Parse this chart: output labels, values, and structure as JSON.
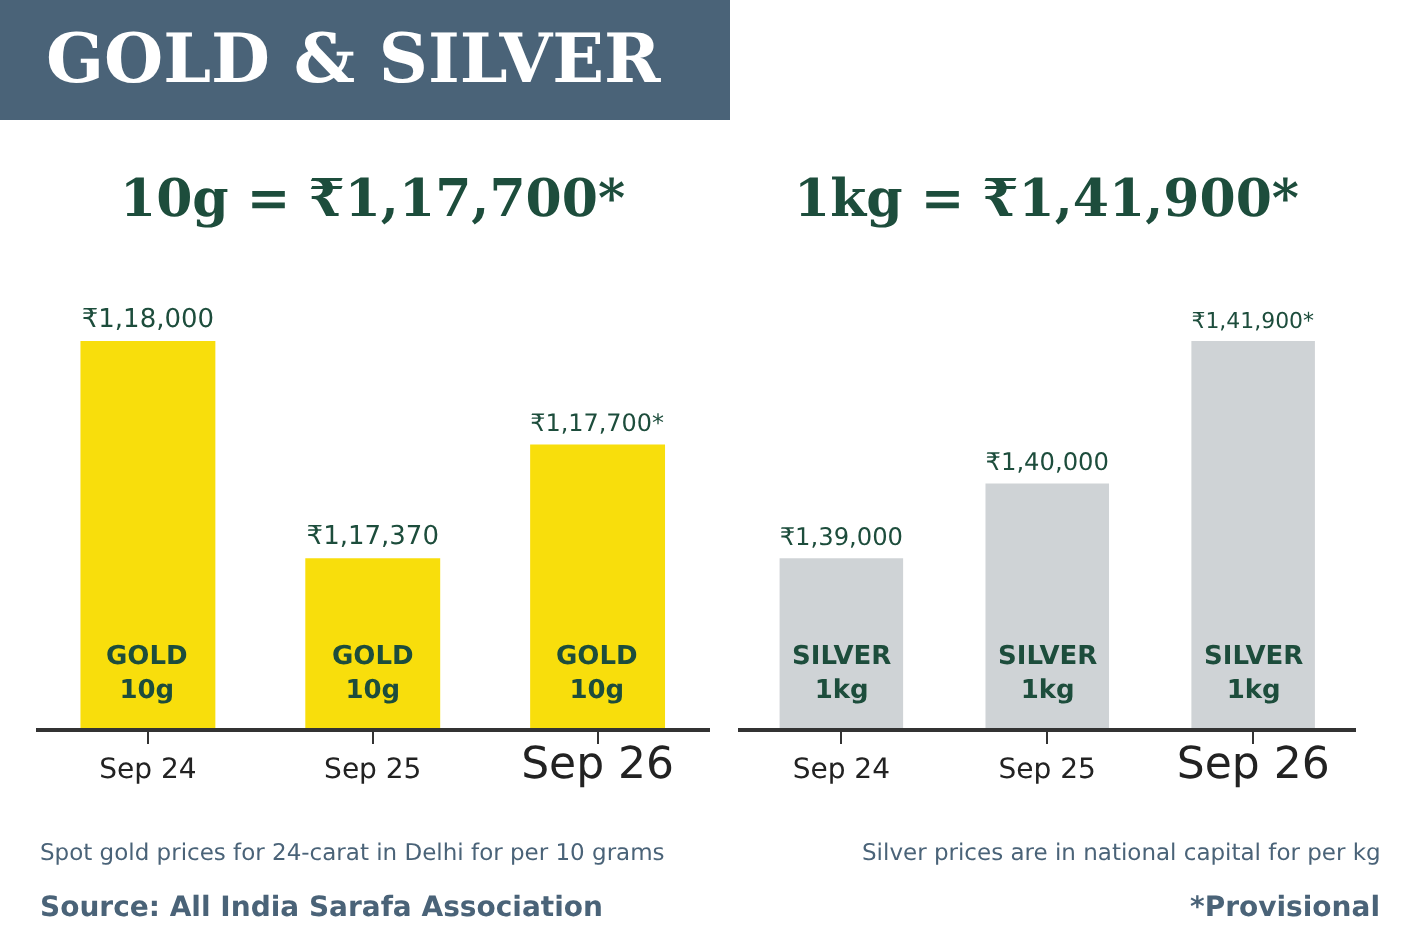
{
  "chart_data": [
    {
      "type": "other",
      "annotations": [
        "GOLD & SILVER",
        "Source: All India Sarafa Association",
        "*Provisional"
      ]
    },
    {
      "type": "bar",
      "title": "10g = ₹1,17,700*",
      "categories": [
        "Sep 24",
        "Sep 25",
        "Sep 26"
      ],
      "values": [
        118000,
        117370,
        117700
      ],
      "color": "#f8de0c",
      "value_labels": [
        "₹1,18,000",
        "₹1,17,370",
        "₹1,17,700*"
      ],
      "tick_labels": "x",
      "annotations": [
        "GOLD\n10g",
        "GOLD\n10g",
        "GOLD\n10g",
        "Spot gold prices for 24-carat in Delhi for per 10 grams"
      ]
    },
    {
      "type": "bar",
      "title": "1kg = ₹1,41,900*",
      "categories": [
        "Sep 24",
        "Sep 25",
        "Sep 26"
      ],
      "values": [
        139000,
        140000,
        141900
      ],
      "color": "#cfd3d6",
      "value_labels": [
        "₹1,39,000",
        "₹1,40,000",
        "₹1,41,900*"
      ],
      "tick_labels": "x",
      "annotations": [
        "SILVER\n1kg",
        "SILVER\n1kg",
        "SILVER\n1kg",
        "Silver prices are in national capital for per kg"
      ]
    }
  ]
}
